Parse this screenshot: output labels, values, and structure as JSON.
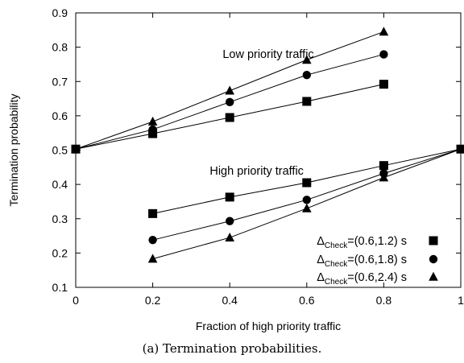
{
  "chart_data": {
    "type": "line",
    "title": "",
    "xlabel": "Fraction of high priority traffic",
    "ylabel": "Termination probability",
    "xlim": [
      0,
      1
    ],
    "ylim": [
      0.1,
      0.9
    ],
    "x_ticks": [
      0,
      0.2,
      0.4,
      0.6,
      0.8,
      1
    ],
    "x_tick_labels": [
      "0",
      "0.2",
      "0.4",
      "0.6",
      "0.8",
      "1"
    ],
    "y_ticks": [
      0.1,
      0.2,
      0.3,
      0.4,
      0.5,
      0.6,
      0.7,
      0.8,
      0.9
    ],
    "y_tick_labels": [
      "0.1",
      "0.2",
      "0.3",
      "0.4",
      "0.5",
      "0.6",
      "0.7",
      "0.8",
      "0.9"
    ],
    "grid": false,
    "legend_position": "bottom-right",
    "annotations": [
      {
        "text": "Low priority traffic",
        "x": 0.5,
        "y": 0.78
      },
      {
        "text": "High priority traffic",
        "x": 0.47,
        "y": 0.44
      }
    ],
    "legend": [
      {
        "prefix": "Δ",
        "subscript": "Check",
        "suffix": "=(0.6,1.2) s",
        "marker": "square"
      },
      {
        "prefix": "Δ",
        "subscript": "Check",
        "suffix": "=(0.6,1.8) s",
        "marker": "circle"
      },
      {
        "prefix": "Δ",
        "subscript": "Check",
        "suffix": "=(0.6,2.4) s",
        "marker": "triangle"
      }
    ],
    "series": [
      {
        "group": "low",
        "marker": "square",
        "x": [
          0,
          0.2,
          0.4,
          0.6,
          0.8
        ],
        "y": [
          0.503,
          0.548,
          0.595,
          0.642,
          0.692
        ]
      },
      {
        "group": "low",
        "marker": "circle",
        "x": [
          0,
          0.2,
          0.4,
          0.6,
          0.8
        ],
        "y": [
          0.503,
          0.56,
          0.64,
          0.719,
          0.779
        ]
      },
      {
        "group": "low",
        "marker": "triangle",
        "x": [
          0,
          0.2,
          0.4,
          0.6,
          0.8
        ],
        "y": [
          0.503,
          0.583,
          0.673,
          0.763,
          0.845
        ]
      },
      {
        "group": "high",
        "marker": "square",
        "x": [
          0.2,
          0.4,
          0.6,
          0.8,
          1
        ],
        "y": [
          0.315,
          0.363,
          0.405,
          0.455,
          0.503
        ]
      },
      {
        "group": "high",
        "marker": "circle",
        "x": [
          0.2,
          0.4,
          0.6,
          0.8,
          1
        ],
        "y": [
          0.238,
          0.293,
          0.355,
          0.432,
          0.503
        ]
      },
      {
        "group": "high",
        "marker": "triangle",
        "x": [
          0.2,
          0.4,
          0.6,
          0.8,
          1
        ],
        "y": [
          0.183,
          0.245,
          0.33,
          0.42,
          0.503
        ]
      }
    ]
  },
  "caption": "(a) Termination probabilities."
}
